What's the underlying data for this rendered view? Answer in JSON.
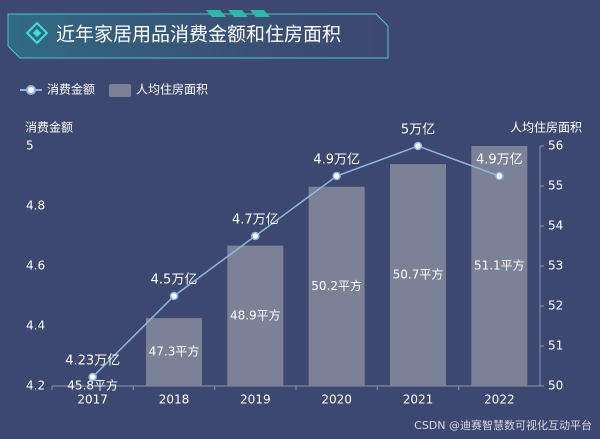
{
  "chart_data": {
    "type": "bar-line",
    "title": "近年家居用品消费金额和住房面积",
    "yaxis_title": "消费金额",
    "y2axis_title": "人均住房面积",
    "categories": [
      "2017",
      "2018",
      "2019",
      "2020",
      "2021",
      "2022"
    ],
    "series": [
      {
        "name": "消费金额",
        "type": "line",
        "axis": "y",
        "color": "#8fb6e0",
        "values": [
          4.23,
          4.5,
          4.7,
          4.9,
          5,
          4.9
        ],
        "value_labels": [
          "4.23万亿",
          "4.5万亿",
          "4.7万亿",
          "4.9万亿",
          "5万亿",
          "4.9万亿"
        ]
      },
      {
        "name": "人均住房面积",
        "type": "bar",
        "axis": "y3",
        "color": "#7b8197",
        "values": [
          45.8,
          47.3,
          48.9,
          50.2,
          50.7,
          51.1
        ],
        "value_labels": [
          "45.8平方",
          "47.3平方",
          "48.9平方",
          "50.2平方",
          "50.7平方",
          "51.1平方"
        ]
      }
    ],
    "ylim": [
      4.2,
      5
    ],
    "yticks": [
      4.2,
      4.4,
      4.6,
      4.8,
      5
    ],
    "y2lim": [
      50,
      56
    ],
    "y2ticks": [
      50,
      51,
      52,
      53,
      54,
      55,
      56
    ],
    "y3lim": [
      45.8,
      51.1
    ],
    "legend": "top-left",
    "watermark": "CSDN @迪赛智慧数可视化互动平台"
  }
}
